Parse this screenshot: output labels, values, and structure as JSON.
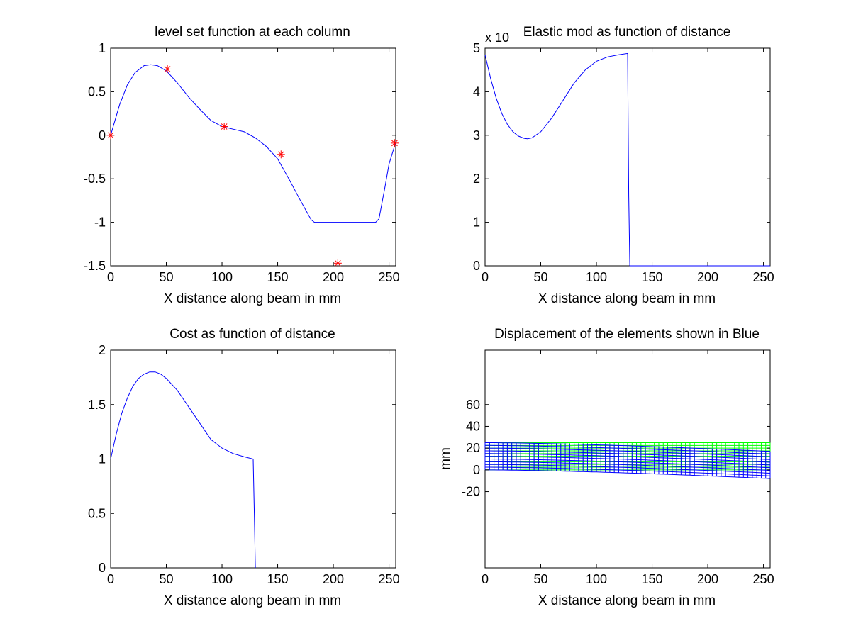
{
  "chart_data": [
    {
      "type": "line",
      "title": "level set function at each column",
      "xlabel": "X distance along beam in mm",
      "ylabel": "",
      "xlim": [
        0,
        256
      ],
      "ylim": [
        -1.5,
        1
      ],
      "xticks": [
        0,
        50,
        100,
        150,
        200,
        250
      ],
      "xtick_labels": [
        "0",
        "50",
        "100",
        "150",
        "200",
        "250"
      ],
      "yticks": [
        -1.5,
        -1,
        -0.5,
        0,
        0.5,
        1
      ],
      "ytick_labels": [
        "-1.5",
        "-1",
        "-0.5",
        "0",
        "0.5",
        "1"
      ],
      "series": [
        {
          "kind": "line",
          "color": "#0000ff",
          "x": [
            0,
            8,
            15,
            22,
            30,
            36,
            42,
            50,
            60,
            70,
            80,
            90,
            100,
            110,
            120,
            130,
            140,
            150,
            160,
            170,
            180,
            183,
            200,
            220,
            238,
            241,
            246,
            250,
            256
          ],
          "y": [
            0,
            0.35,
            0.58,
            0.72,
            0.8,
            0.81,
            0.8,
            0.74,
            0.6,
            0.44,
            0.3,
            0.17,
            0.1,
            0.07,
            0.04,
            -0.03,
            -0.13,
            -0.27,
            -0.5,
            -0.74,
            -0.97,
            -1,
            -1,
            -1,
            -1,
            -0.96,
            -0.62,
            -0.33,
            -0.08
          ]
        },
        {
          "kind": "markers",
          "marker": "asterisk",
          "color": "#ff0000",
          "x": [
            0,
            51,
            102,
            153,
            204,
            255
          ],
          "y": [
            0,
            0.76,
            0.1,
            -0.22,
            -1.47,
            -0.09
          ]
        }
      ]
    },
    {
      "type": "line",
      "title": "Elastic mod as function of distance",
      "exponent_label": "x 10",
      "xlabel": "X distance along beam in mm",
      "ylabel": "",
      "xlim": [
        0,
        256
      ],
      "ylim": [
        0,
        5
      ],
      "xticks": [
        0,
        50,
        100,
        150,
        200,
        250
      ],
      "xtick_labels": [
        "0",
        "50",
        "100",
        "150",
        "200",
        "250"
      ],
      "yticks": [
        0,
        1,
        2,
        3,
        4,
        5
      ],
      "ytick_labels": [
        "0",
        "1",
        "2",
        "3",
        "4",
        "5"
      ],
      "series": [
        {
          "kind": "line",
          "color": "#0000ff",
          "x": [
            0,
            5,
            10,
            15,
            20,
            25,
            30,
            35,
            38,
            42,
            50,
            60,
            70,
            80,
            90,
            100,
            110,
            120,
            128,
            129,
            130,
            256
          ],
          "y": [
            4.85,
            4.3,
            3.85,
            3.5,
            3.25,
            3.08,
            2.98,
            2.93,
            2.92,
            2.94,
            3.08,
            3.4,
            3.8,
            4.2,
            4.5,
            4.7,
            4.8,
            4.85,
            4.88,
            1.6,
            0,
            0
          ]
        }
      ]
    },
    {
      "type": "line",
      "title": "Cost as function of distance",
      "xlabel": "X distance along beam in mm",
      "ylabel": "",
      "xlim": [
        0,
        256
      ],
      "ylim": [
        0,
        2
      ],
      "xticks": [
        0,
        50,
        100,
        150,
        200,
        250
      ],
      "xtick_labels": [
        "0",
        "50",
        "100",
        "150",
        "200",
        "250"
      ],
      "yticks": [
        0,
        0.5,
        1,
        1.5,
        2
      ],
      "ytick_labels": [
        "0",
        "0.5",
        "1",
        "1.5",
        "2"
      ],
      "series": [
        {
          "kind": "line",
          "color": "#0000ff",
          "x": [
            0,
            5,
            10,
            15,
            20,
            25,
            30,
            35,
            40,
            45,
            50,
            60,
            70,
            80,
            90,
            100,
            110,
            120,
            128,
            129,
            130
          ],
          "y": [
            1,
            1.23,
            1.42,
            1.56,
            1.67,
            1.74,
            1.78,
            1.8,
            1.8,
            1.78,
            1.74,
            1.63,
            1.48,
            1.33,
            1.18,
            1.1,
            1.05,
            1.02,
            1,
            0.5,
            0
          ]
        }
      ]
    },
    {
      "type": "mesh",
      "title": "Displacement of the elements shown in Blue",
      "xlabel": "X distance along beam in mm",
      "ylabel": "mm",
      "xlim": [
        0,
        256
      ],
      "ylim": [
        -90,
        110
      ],
      "xticks": [
        0,
        50,
        100,
        150,
        200,
        250
      ],
      "xtick_labels": [
        "0",
        "50",
        "100",
        "150",
        "200",
        "250"
      ],
      "yticks": [
        -20,
        0,
        20,
        40,
        60
      ],
      "ytick_labels": [
        "-20",
        "0",
        "20",
        "40",
        "60"
      ],
      "original_mesh": {
        "color": "#00ff00",
        "x_range": [
          0,
          256
        ],
        "y_range": [
          0,
          25
        ],
        "cols": 64,
        "rows": 10
      },
      "displaced_mesh": {
        "color": "#0000ff",
        "x_range": [
          0,
          256
        ],
        "y_range": [
          0,
          25
        ],
        "cols": 64,
        "rows": 10,
        "tip_displacement": -8
      }
    }
  ]
}
